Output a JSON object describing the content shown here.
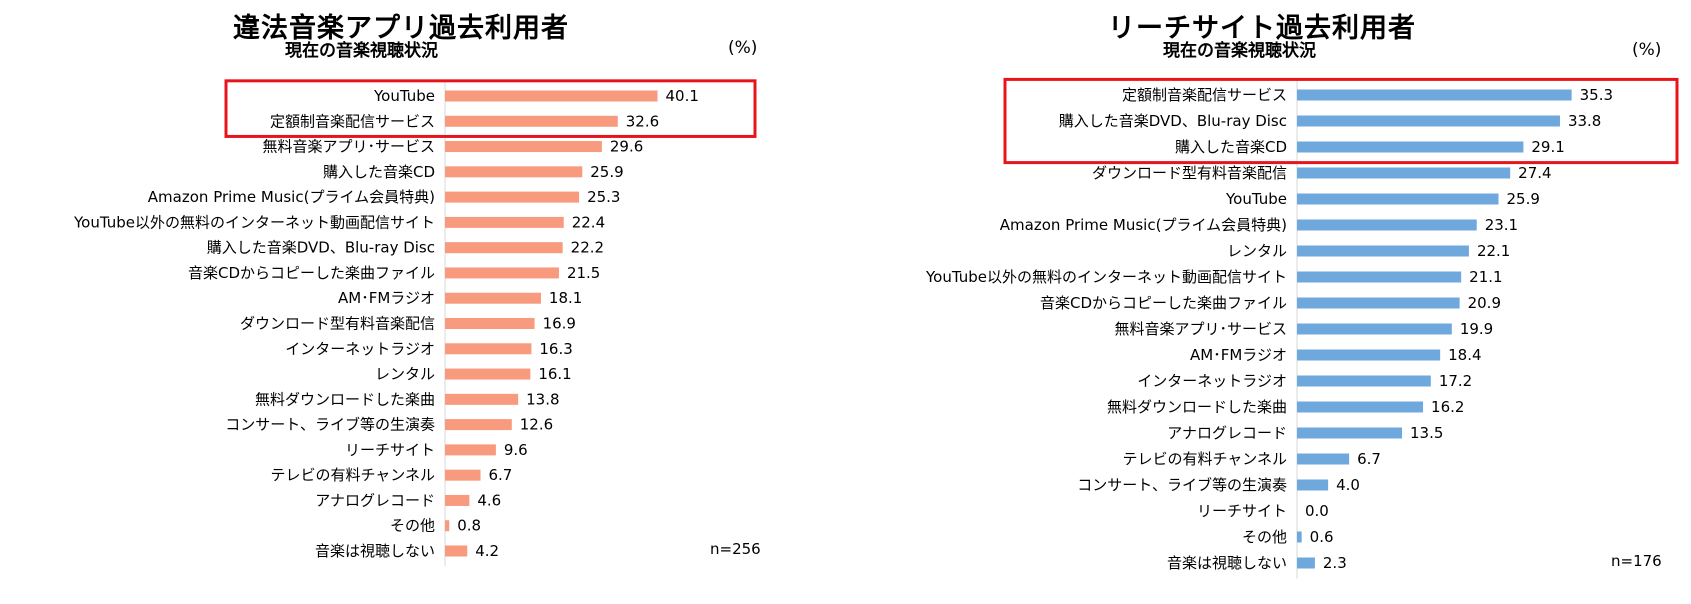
{
  "chart_data": [
    {
      "type": "bar",
      "orientation": "horizontal",
      "title": "違法音楽アプリ過去利用者",
      "subtitle": "現在の音楽視聴状況",
      "unit": "(%)",
      "sample": "n=256",
      "color": "#f79a7e",
      "highlight_color": "#e8141b",
      "highlight_count": 2,
      "categories": [
        "YouTube",
        "定額制音楽配信サービス",
        "無料音楽アプリ･サービス",
        "購入した音楽CD",
        "Amazon Prime Music(プライム会員特典)",
        "YouTube以外の無料のインターネット動画配信サイト",
        "購入した音楽DVD、Blu-ray Disc",
        "音楽CDからコピーした楽曲ファイル",
        "AM･FMラジオ",
        "ダウンロード型有料音楽配信",
        "インターネットラジオ",
        "レンタル",
        "無料ダウンロードした楽曲",
        "コンサート、ライブ等の生演奏",
        "リーチサイト",
        "テレビの有料チャンネル",
        "アナログレコード",
        "その他",
        "音楽は視聴しない"
      ],
      "values": [
        40.1,
        32.6,
        29.6,
        25.9,
        25.3,
        22.4,
        22.2,
        21.5,
        18.1,
        16.9,
        16.3,
        16.1,
        13.8,
        12.6,
        9.6,
        6.7,
        4.6,
        0.8,
        4.2
      ],
      "value_labels": [
        "40.1",
        "32.6",
        "29.6",
        "25.9",
        "25.3",
        "22.4",
        "22.2",
        "21.5",
        "18.1",
        "16.9",
        "16.3",
        "16.1",
        "13.8",
        "12.6",
        "9.6",
        "6.7",
        "4.6",
        "0.8",
        "4.2"
      ]
    },
    {
      "type": "bar",
      "orientation": "horizontal",
      "title": "リーチサイト過去利用者",
      "subtitle": "現在の音楽視聴状況",
      "unit": "(%)",
      "sample": "n=176",
      "color": "#6fa8dc",
      "highlight_color": "#e8141b",
      "highlight_count": 3,
      "categories": [
        "定額制音楽配信サービス",
        "購入した音楽DVD、Blu-ray Disc",
        "購入した音楽CD",
        "ダウンロード型有料音楽配信",
        "YouTube",
        "Amazon Prime Music(プライム会員特典)",
        "レンタル",
        "YouTube以外の無料のインターネット動画配信サイト",
        "音楽CDからコピーした楽曲ファイル",
        "無料音楽アプリ･サービス",
        "AM･FMラジオ",
        "インターネットラジオ",
        "無料ダウンロードした楽曲",
        "アナログレコード",
        "テレビの有料チャンネル",
        "コンサート、ライブ等の生演奏",
        "リーチサイト",
        "その他",
        "音楽は視聴しない"
      ],
      "values": [
        35.3,
        33.8,
        29.1,
        27.4,
        25.9,
        23.1,
        22.1,
        21.1,
        20.9,
        19.9,
        18.4,
        17.2,
        16.2,
        13.5,
        6.7,
        4.0,
        0.0,
        0.6,
        2.3
      ],
      "value_labels": [
        "35.3",
        "33.8",
        "29.1",
        "27.4",
        "25.9",
        "23.1",
        "22.1",
        "21.1",
        "20.9",
        "19.9",
        "18.4",
        "17.2",
        "16.2",
        "13.5",
        "6.7",
        "4.0",
        "0.0",
        "0.6",
        "2.3"
      ]
    }
  ]
}
